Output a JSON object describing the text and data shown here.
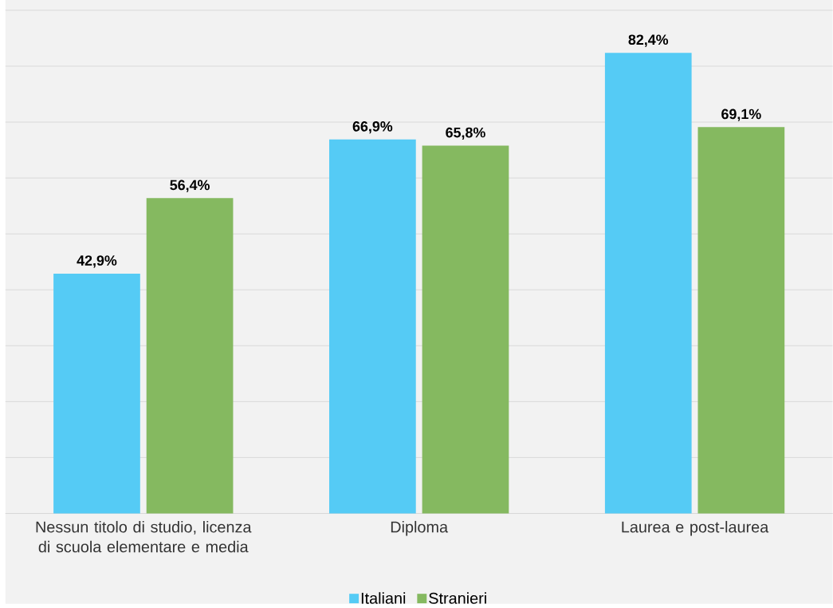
{
  "chart_data": {
    "type": "bar",
    "categories": [
      "Nessun titolo di studio, licenza di scuola elementare e media",
      "Diploma",
      "Laurea e post-laurea"
    ],
    "series": [
      {
        "name": "Italiani",
        "color": "#55cbf5",
        "values": [
          42.9,
          66.9,
          82.4
        ],
        "value_labels": [
          "42,9%",
          "66,9%",
          "82,4%"
        ]
      },
      {
        "name": "Stranieri",
        "color": "#85b960",
        "values": [
          56.4,
          65.8,
          69.1
        ],
        "value_labels": [
          "56,4%",
          "65,8%",
          "69,1%"
        ]
      }
    ],
    "ylim": [
      0,
      90
    ],
    "yticks": [
      {
        "value": 0,
        "label": null
      },
      {
        "value": 10,
        "label": null
      },
      {
        "value": 20,
        "label": null
      },
      {
        "value": 30,
        "label": null
      },
      {
        "value": 40,
        "label": null
      },
      {
        "value": 50,
        "label": null
      },
      {
        "value": 60,
        "label": null
      },
      {
        "value": 70,
        "label": null
      },
      {
        "value": 80,
        "label": null
      },
      {
        "value": 90,
        "label": null
      }
    ],
    "grid": "y",
    "legend": "bottom",
    "tick_labels": "x"
  }
}
